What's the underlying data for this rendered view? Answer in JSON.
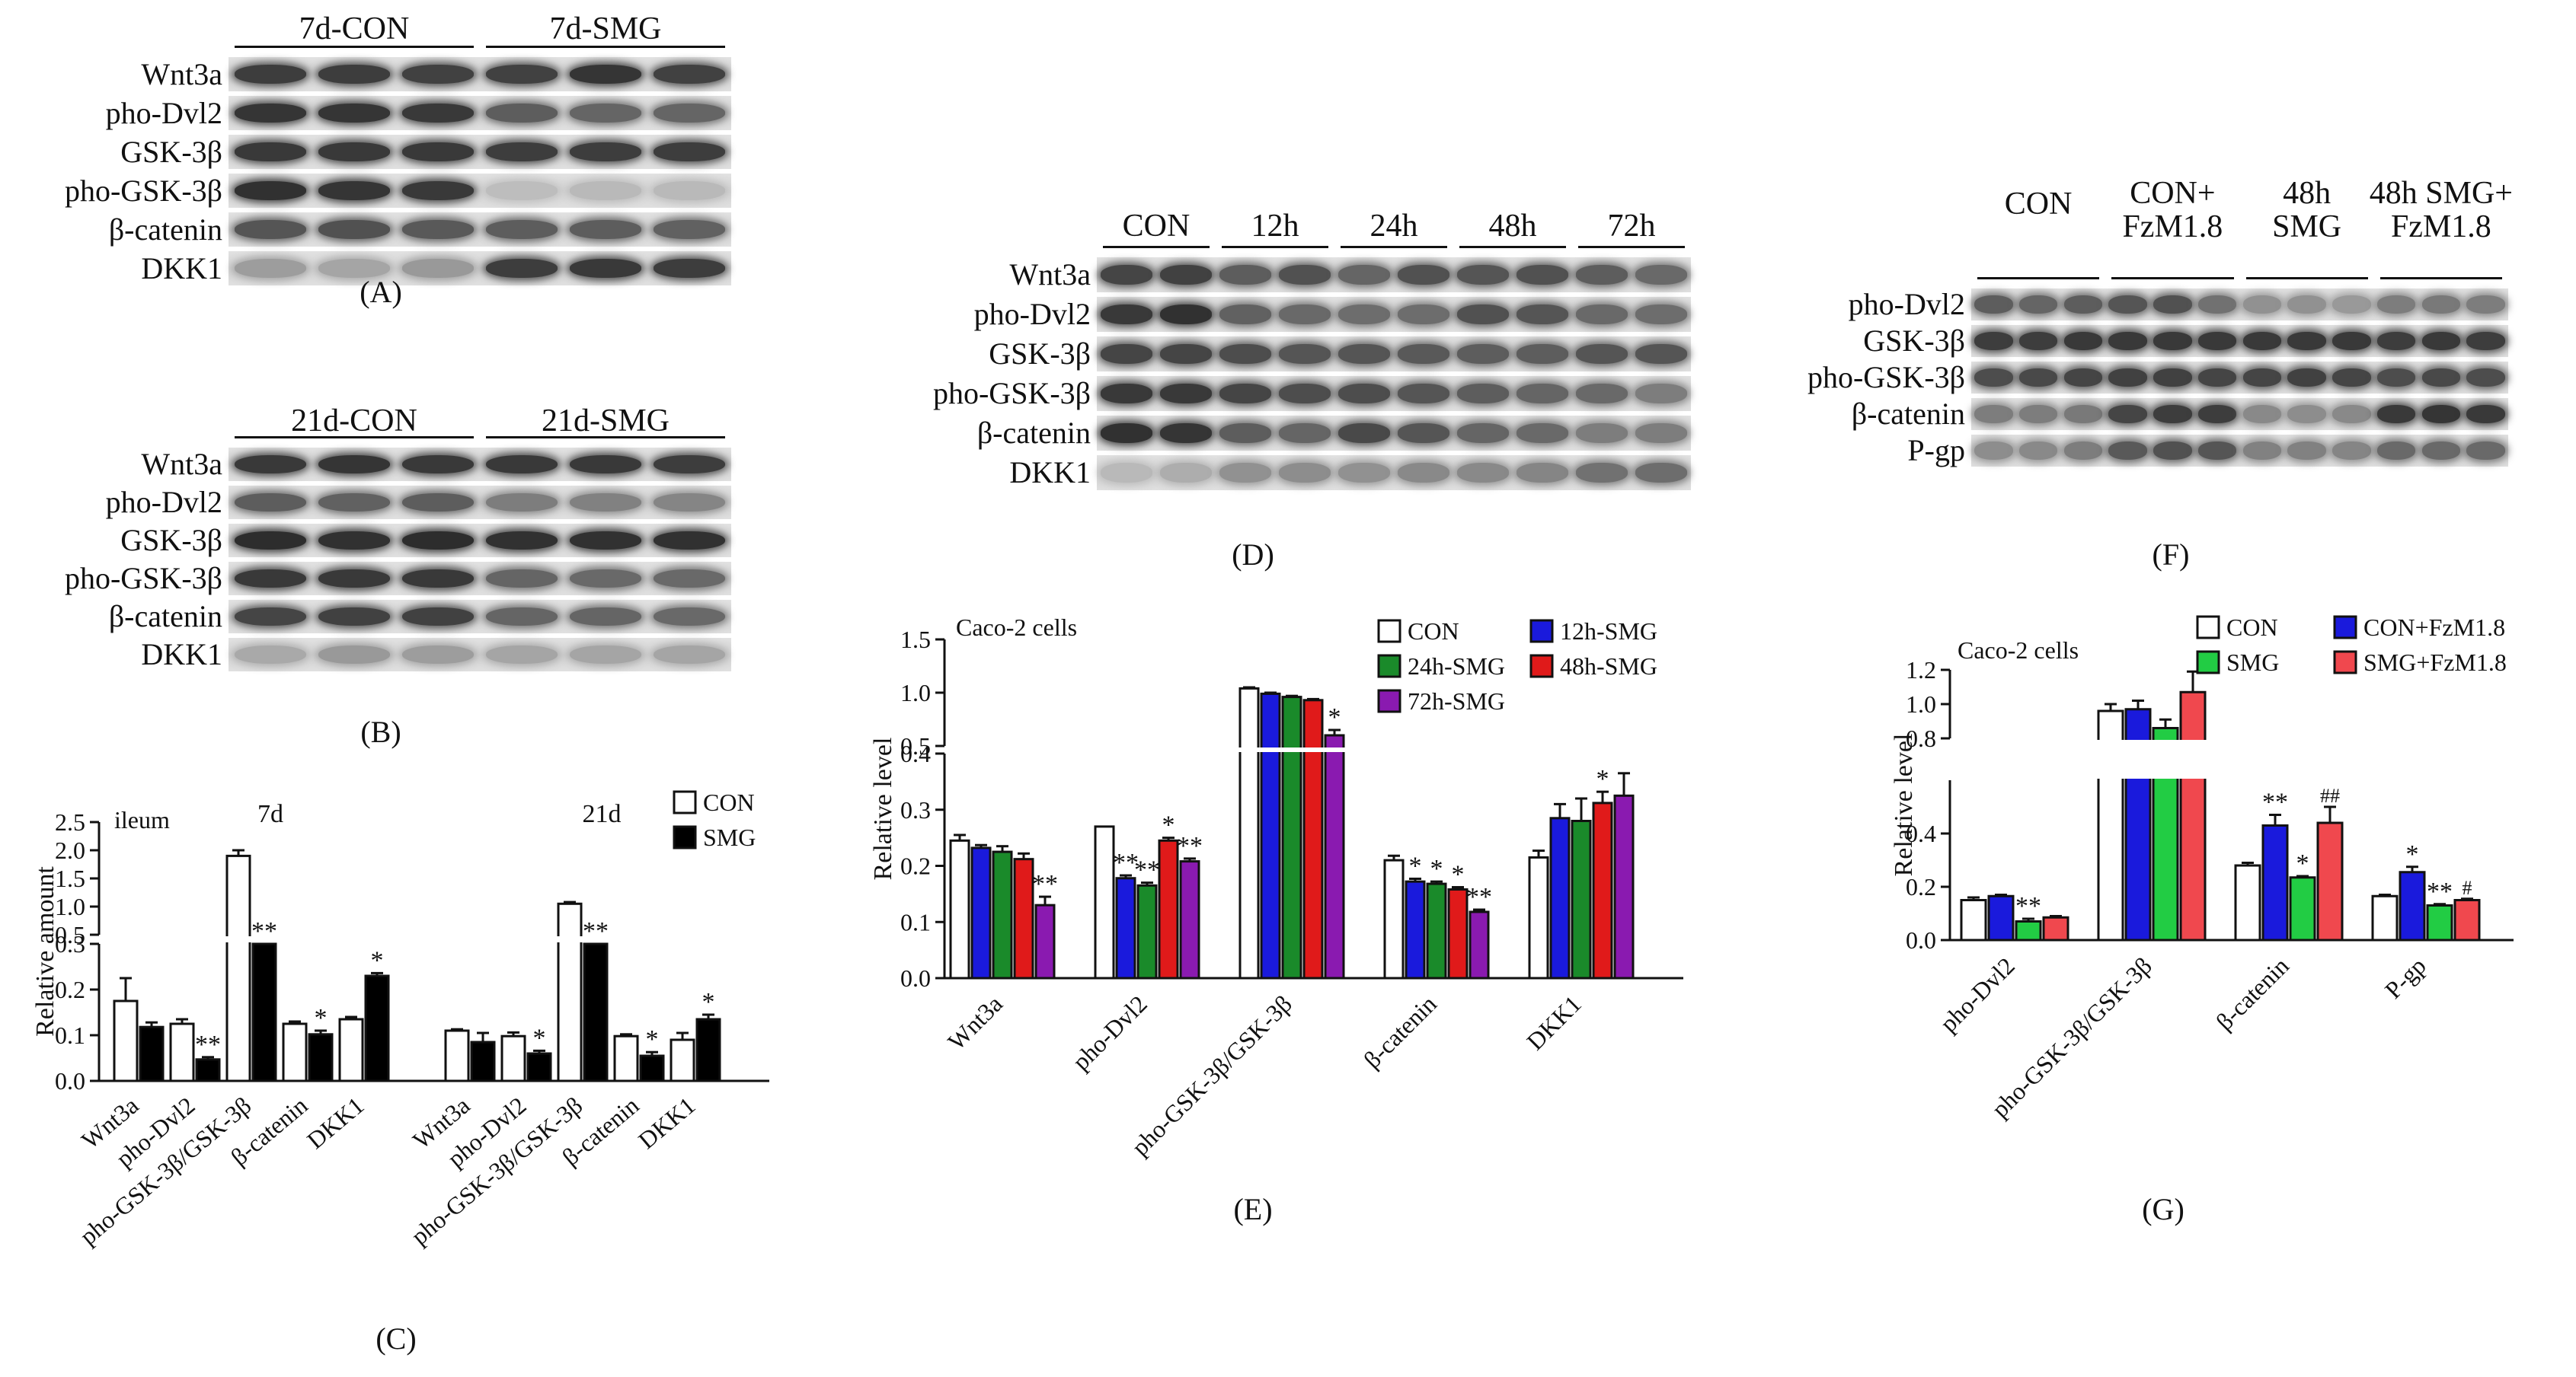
{
  "panels": {
    "A": {
      "label": "(A)",
      "groups": [
        {
          "label": "7d-CON",
          "lanes": 3
        },
        {
          "label": "7d-SMG",
          "lanes": 3
        }
      ],
      "rows": [
        {
          "label": "Wnt3a",
          "intensity": [
            0.82,
            0.82,
            0.8,
            0.8,
            0.86,
            0.8
          ]
        },
        {
          "label": "pho-Dvl2",
          "intensity": [
            0.86,
            0.86,
            0.84,
            0.66,
            0.62,
            0.62
          ]
        },
        {
          "label": "GSK-3β",
          "intensity": [
            0.84,
            0.84,
            0.84,
            0.82,
            0.82,
            0.82
          ]
        },
        {
          "label": "pho-GSK-3β",
          "intensity": [
            0.88,
            0.86,
            0.84,
            0.18,
            0.2,
            0.2
          ]
        },
        {
          "label": "β-catenin",
          "intensity": [
            0.7,
            0.72,
            0.68,
            0.66,
            0.66,
            0.64
          ]
        },
        {
          "label": "DKK1",
          "intensity": [
            0.34,
            0.3,
            0.36,
            0.82,
            0.84,
            0.82
          ]
        }
      ]
    },
    "B": {
      "label": "(B)",
      "groups": [
        {
          "label": "21d-CON",
          "lanes": 3
        },
        {
          "label": "21d-SMG",
          "lanes": 3
        }
      ],
      "rows": [
        {
          "label": "Wnt3a",
          "intensity": [
            0.84,
            0.86,
            0.84,
            0.84,
            0.84,
            0.82
          ]
        },
        {
          "label": "pho-Dvl2",
          "intensity": [
            0.66,
            0.64,
            0.66,
            0.5,
            0.48,
            0.46
          ]
        },
        {
          "label": "GSK-3β",
          "intensity": [
            0.9,
            0.88,
            0.9,
            0.88,
            0.88,
            0.88
          ]
        },
        {
          "label": "pho-GSK-3β",
          "intensity": [
            0.84,
            0.84,
            0.84,
            0.62,
            0.6,
            0.6
          ]
        },
        {
          "label": "β-catenin",
          "intensity": [
            0.78,
            0.8,
            0.8,
            0.62,
            0.62,
            0.6
          ]
        },
        {
          "label": "DKK1",
          "intensity": [
            0.28,
            0.36,
            0.34,
            0.3,
            0.3,
            0.3
          ]
        }
      ]
    },
    "D": {
      "label": "(D)",
      "groups": [
        {
          "label": "CON",
          "lanes": 2
        },
        {
          "label": "12h",
          "lanes": 2
        },
        {
          "label": "24h",
          "lanes": 2
        },
        {
          "label": "48h",
          "lanes": 2
        },
        {
          "label": "72h",
          "lanes": 2
        }
      ],
      "rows": [
        {
          "label": "Wnt3a",
          "intensity": [
            0.78,
            0.8,
            0.66,
            0.72,
            0.62,
            0.72,
            0.7,
            0.72,
            0.66,
            0.6
          ]
        },
        {
          "label": "pho-Dvl2",
          "intensity": [
            0.84,
            0.88,
            0.64,
            0.6,
            0.58,
            0.58,
            0.72,
            0.7,
            0.6,
            0.58
          ]
        },
        {
          "label": "GSK-3β",
          "intensity": [
            0.78,
            0.78,
            0.74,
            0.7,
            0.7,
            0.68,
            0.66,
            0.66,
            0.7,
            0.7
          ]
        },
        {
          "label": "pho-GSK-3β",
          "intensity": [
            0.84,
            0.84,
            0.78,
            0.74,
            0.74,
            0.7,
            0.66,
            0.62,
            0.6,
            0.5
          ]
        },
        {
          "label": "β-catenin",
          "intensity": [
            0.88,
            0.86,
            0.66,
            0.62,
            0.76,
            0.7,
            0.62,
            0.6,
            0.5,
            0.5
          ]
        },
        {
          "label": "DKK1",
          "intensity": [
            0.2,
            0.26,
            0.4,
            0.42,
            0.4,
            0.44,
            0.44,
            0.46,
            0.56,
            0.58
          ]
        }
      ]
    },
    "F": {
      "label": "(F)",
      "groups": [
        {
          "label": "CON",
          "lanes": 3
        },
        {
          "label": "CON+\nFzM1.8",
          "lanes": 3
        },
        {
          "label": "48h\nSMG",
          "lanes": 3
        },
        {
          "label": "48h SMG+\nFzM1.8",
          "lanes": 3
        }
      ],
      "rows": [
        {
          "label": "pho-Dvl2",
          "intensity": [
            0.66,
            0.62,
            0.66,
            0.7,
            0.72,
            0.56,
            0.4,
            0.4,
            0.36,
            0.5,
            0.52,
            0.5
          ]
        },
        {
          "label": "GSK-3β",
          "intensity": [
            0.82,
            0.82,
            0.84,
            0.84,
            0.84,
            0.84,
            0.84,
            0.84,
            0.84,
            0.82,
            0.84,
            0.82
          ]
        },
        {
          "label": "pho-GSK-3β",
          "intensity": [
            0.74,
            0.76,
            0.78,
            0.8,
            0.8,
            0.78,
            0.78,
            0.8,
            0.78,
            0.74,
            0.76,
            0.74
          ]
        },
        {
          "label": "β-catenin",
          "intensity": [
            0.5,
            0.5,
            0.52,
            0.78,
            0.82,
            0.82,
            0.44,
            0.42,
            0.44,
            0.84,
            0.86,
            0.84
          ]
        },
        {
          "label": "P-gp",
          "intensity": [
            0.42,
            0.44,
            0.5,
            0.68,
            0.72,
            0.7,
            0.48,
            0.48,
            0.46,
            0.6,
            0.6,
            0.6
          ]
        }
      ]
    },
    "C": {
      "label": "(C)"
    },
    "E": {
      "label": "(E)"
    },
    "G": {
      "label": "(G)"
    }
  },
  "chart_data": [
    {
      "id": "C",
      "type": "bar",
      "title": "",
      "annotation": "ileum",
      "ylabel": "Relative amount",
      "xlabel": "",
      "broken_axis": {
        "lower": [
          0,
          0.3
        ],
        "upper": [
          0.5,
          2.5
        ],
        "lower_ticks": [
          "0.0",
          "0.1",
          "0.2",
          "0.3"
        ],
        "upper_ticks": [
          "0.5",
          "1.0",
          "1.5",
          "2.0",
          "2.5"
        ]
      },
      "categories": [
        "Wnt3a",
        "pho-Dvl2",
        "pho-GSK-3β/GSK-3β",
        "β-catenin",
        "DKK1"
      ],
      "facets": [
        {
          "label": "7d",
          "series": [
            {
              "name": "CON",
              "values": [
                0.175,
                0.125,
                1.9,
                0.125,
                0.135
              ],
              "errors": [
                0.05,
                0.01,
                0.1,
                0.005,
                0.005
              ],
              "sig": [
                "",
                "",
                "",
                "",
                ""
              ]
            },
            {
              "name": "SMG",
              "values": [
                0.118,
                0.047,
                0.3,
                0.102,
                0.23
              ],
              "errors": [
                0.01,
                0.005,
                0.0,
                0.008,
                0.006
              ],
              "sig": [
                "",
                "**",
                "**",
                "*",
                "*"
              ]
            }
          ]
        },
        {
          "label": "21d",
          "series": [
            {
              "name": "CON",
              "values": [
                0.11,
                0.098,
                1.05,
                0.098,
                0.09
              ],
              "errors": [
                0.003,
                0.008,
                0.03,
                0.004,
                0.015
              ],
              "sig": [
                "",
                "",
                "",
                "",
                ""
              ]
            },
            {
              "name": "SMG",
              "values": [
                0.085,
                0.06,
                0.3,
                0.055,
                0.135
              ],
              "errors": [
                0.02,
                0.006,
                0.0,
                0.008,
                0.01
              ],
              "sig": [
                "",
                "*",
                "**",
                "*",
                "*"
              ]
            }
          ]
        }
      ],
      "legend": [
        {
          "name": "CON",
          "color": "#ffffff"
        },
        {
          "name": "SMG",
          "color": "#000000"
        }
      ],
      "legend_position": "top-right"
    },
    {
      "id": "E",
      "type": "bar",
      "title": "",
      "annotation": "Caco-2 cells",
      "ylabel": "Relative level",
      "xlabel": "",
      "broken_axis": {
        "lower": [
          0,
          0.4
        ],
        "upper": [
          0.5,
          1.5
        ],
        "lower_ticks": [
          "0.0",
          "0.1",
          "0.2",
          "0.3",
          "0.4"
        ],
        "upper_ticks": [
          "0.5",
          "1.0",
          "1.5"
        ]
      },
      "categories": [
        "Wnt3a",
        "pho-Dvl2",
        "pho-GSK-3β/GSK-3β",
        "β-catenin",
        "DKK1"
      ],
      "series": [
        {
          "name": "CON",
          "color": "#ffffff",
          "values": [
            0.245,
            0.27,
            1.04,
            0.21,
            0.215
          ],
          "errors": [
            0.01,
            0.0,
            0.01,
            0.008,
            0.012
          ],
          "sig": [
            "",
            "",
            "",
            "",
            ""
          ]
        },
        {
          "name": "12h-SMG",
          "color": "#1a1adc",
          "values": [
            0.232,
            0.178,
            0.99,
            0.172,
            0.285
          ],
          "errors": [
            0.005,
            0.005,
            0.01,
            0.005,
            0.025
          ],
          "sig": [
            "",
            "**",
            "",
            "*",
            ""
          ]
        },
        {
          "name": "24h-SMG",
          "color": "#1a8a2a",
          "values": [
            0.225,
            0.165,
            0.96,
            0.168,
            0.28
          ],
          "errors": [
            0.01,
            0.005,
            0.01,
            0.004,
            0.04
          ],
          "sig": [
            "",
            "**",
            "",
            "*",
            ""
          ]
        },
        {
          "name": "48h-SMG",
          "color": "#e01a1a",
          "values": [
            0.212,
            0.245,
            0.93,
            0.158,
            0.312
          ],
          "errors": [
            0.01,
            0.005,
            0.01,
            0.004,
            0.02
          ],
          "sig": [
            "",
            "*",
            "",
            "*",
            "*"
          ]
        },
        {
          "name": "72h-SMG",
          "color": "#8a1ab0",
          "values": [
            0.13,
            0.208,
            0.6,
            0.118,
            0.325
          ],
          "errors": [
            0.015,
            0.005,
            0.05,
            0.004,
            0.04
          ],
          "sig": [
            "**",
            "**",
            "*",
            "**",
            ""
          ]
        }
      ],
      "legend_position": "top-right"
    },
    {
      "id": "G",
      "type": "bar",
      "title": "",
      "annotation": "Caco-2 cells",
      "ylabel": "Relative level",
      "xlabel": "",
      "broken_axis": {
        "lower": [
          0,
          0.6
        ],
        "upper": [
          0.8,
          1.2
        ],
        "lower_ticks": [
          "0.0",
          "0.2",
          "0.4"
        ],
        "upper_ticks": [
          "0.8",
          "1.0",
          "1.2"
        ]
      },
      "categories": [
        "pho-Dvl2",
        "pho-GSK-3β/GSK-3β",
        "β-catenin",
        "P-gp"
      ],
      "series": [
        {
          "name": "CON",
          "color": "#ffffff",
          "values": [
            0.15,
            0.96,
            0.28,
            0.165
          ],
          "errors": [
            0.01,
            0.04,
            0.01,
            0.005
          ],
          "sig": [
            "",
            "",
            "",
            ""
          ]
        },
        {
          "name": "CON+FzM1.8",
          "color": "#1a1adc",
          "values": [
            0.165,
            0.97,
            0.43,
            0.255
          ],
          "errors": [
            0.005,
            0.05,
            0.04,
            0.02
          ],
          "sig": [
            "",
            "",
            "**",
            "*"
          ]
        },
        {
          "name": "SMG",
          "color": "#22cc44",
          "values": [
            0.07,
            0.86,
            0.235,
            0.13
          ],
          "errors": [
            0.01,
            0.05,
            0.005,
            0.005
          ],
          "sig": [
            "**",
            "",
            "*",
            "**"
          ]
        },
        {
          "name": "SMG+FzM1.8",
          "color": "#f0484e",
          "values": [
            0.085,
            1.07,
            0.44,
            0.15
          ],
          "errors": [
            0.005,
            0.12,
            0.06,
            0.005
          ],
          "sig": [
            "",
            "",
            "##",
            "#"
          ]
        }
      ],
      "legend_position": "top-right"
    }
  ]
}
